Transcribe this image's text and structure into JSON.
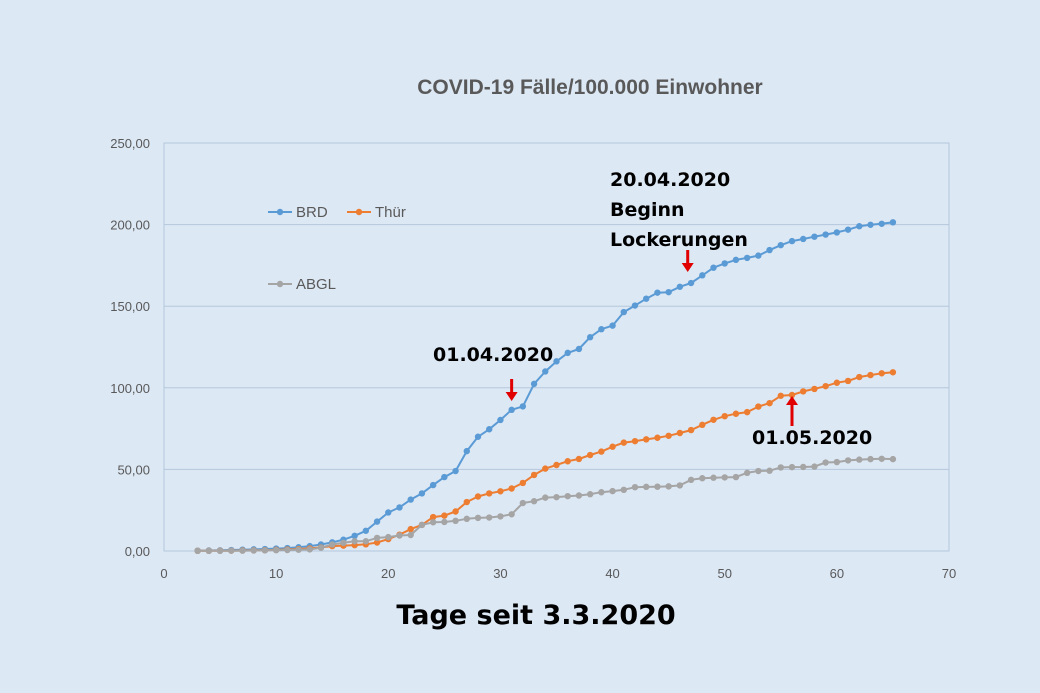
{
  "chart_data": {
    "type": "line",
    "title": "COVID-19 Fälle/100.000 Einwohner",
    "xlabel": "Tage seit 3.3.2020",
    "ylabel": "",
    "xlim": [
      0,
      70
    ],
    "ylim": [
      0,
      250
    ],
    "x_ticks": [
      "0",
      "10",
      "20",
      "30",
      "40",
      "50",
      "60",
      "70"
    ],
    "y_ticks": [
      "0,00",
      "50,00",
      "100,00",
      "150,00",
      "200,00",
      "250,00"
    ],
    "grid": "horizontal",
    "legend": "upper-left",
    "x": [
      3,
      4,
      5,
      6,
      7,
      8,
      9,
      10,
      11,
      12,
      13,
      14,
      15,
      16,
      17,
      18,
      19,
      20,
      21,
      22,
      23,
      24,
      25,
      26,
      27,
      28,
      29,
      30,
      31,
      32,
      33,
      34,
      35,
      36,
      37,
      38,
      39,
      40,
      41,
      42,
      43,
      44,
      45,
      46,
      47,
      48,
      49,
      50,
      51,
      52,
      53,
      54,
      55,
      56,
      57,
      58,
      59,
      60,
      61,
      62,
      63,
      64,
      65
    ],
    "series": [
      {
        "name": "BRD",
        "color": "#5b9bd5",
        "values": [
          0.2,
          0.3,
          0.4,
          0.6,
          0.8,
          1.0,
          1.2,
          1.5,
          1.8,
          2.3,
          3.0,
          4.0,
          5.3,
          6.9,
          9.3,
          12.4,
          18.0,
          23.6,
          26.7,
          31.5,
          35.3,
          40.4,
          45.3,
          49.0,
          61.2,
          70.0,
          74.6,
          80.3,
          86.5,
          88.6,
          102.4,
          110.0,
          116.2,
          121.4,
          123.8,
          131.0,
          135.9,
          138.1,
          146.4,
          150.4,
          154.6,
          158.3,
          158.6,
          161.9,
          164.2,
          168.9,
          173.6,
          176.2,
          178.4,
          179.6,
          181.0,
          184.4,
          187.4,
          189.9,
          191.2,
          192.6,
          193.9,
          195.2,
          196.9,
          199.0,
          199.9,
          200.5,
          201.4
        ]
      },
      {
        "name": "Thür",
        "color": "#ed7d31",
        "values": [
          0.1,
          0.1,
          0.2,
          0.2,
          0.3,
          0.4,
          0.5,
          0.7,
          0.9,
          1.2,
          1.6,
          2.2,
          3.0,
          3.3,
          3.6,
          4.1,
          5.2,
          7.3,
          10.0,
          13.4,
          16.0,
          20.8,
          21.7,
          24.2,
          30.0,
          33.4,
          35.3,
          36.6,
          38.3,
          41.7,
          46.6,
          50.5,
          52.7,
          55.0,
          56.4,
          58.8,
          60.9,
          63.9,
          66.4,
          67.3,
          68.4,
          69.4,
          70.6,
          72.3,
          74.1,
          77.3,
          80.4,
          82.6,
          84.1,
          85.1,
          88.5,
          90.6,
          95.1,
          95.6,
          97.8,
          99.3,
          101.0,
          103.1,
          104.2,
          106.6,
          107.8,
          108.9,
          109.5
        ]
      },
      {
        "name": "ABGL",
        "color": "#a5a5a5",
        "values": [
          0.1,
          0.1,
          0.1,
          0.2,
          0.2,
          0.3,
          0.4,
          0.5,
          0.6,
          0.8,
          1.0,
          2.0,
          4.0,
          5.0,
          6.0,
          6.0,
          8.0,
          8.5,
          9.5,
          9.8,
          16.0,
          17.6,
          17.8,
          18.5,
          19.7,
          20.3,
          20.5,
          21.2,
          22.5,
          29.4,
          30.5,
          32.7,
          33.0,
          33.6,
          34.0,
          34.8,
          36.0,
          36.7,
          37.5,
          39.1,
          39.3,
          39.4,
          39.6,
          40.2,
          43.6,
          44.6,
          44.9,
          45.1,
          45.3,
          47.9,
          49.0,
          49.2,
          51.2,
          51.4,
          51.5,
          51.7,
          54.2,
          54.5,
          55.5,
          56.0,
          56.3,
          56.5,
          56.3
        ]
      }
    ],
    "annotations": [
      {
        "text": "01.04.2020",
        "x": 31,
        "direction": "down"
      },
      {
        "text": "20.04.2020\nBeginn\nLockerungen",
        "x": 46.7,
        "direction": "down"
      },
      {
        "text": "01.05.2020",
        "x": 56,
        "direction": "up"
      }
    ]
  }
}
